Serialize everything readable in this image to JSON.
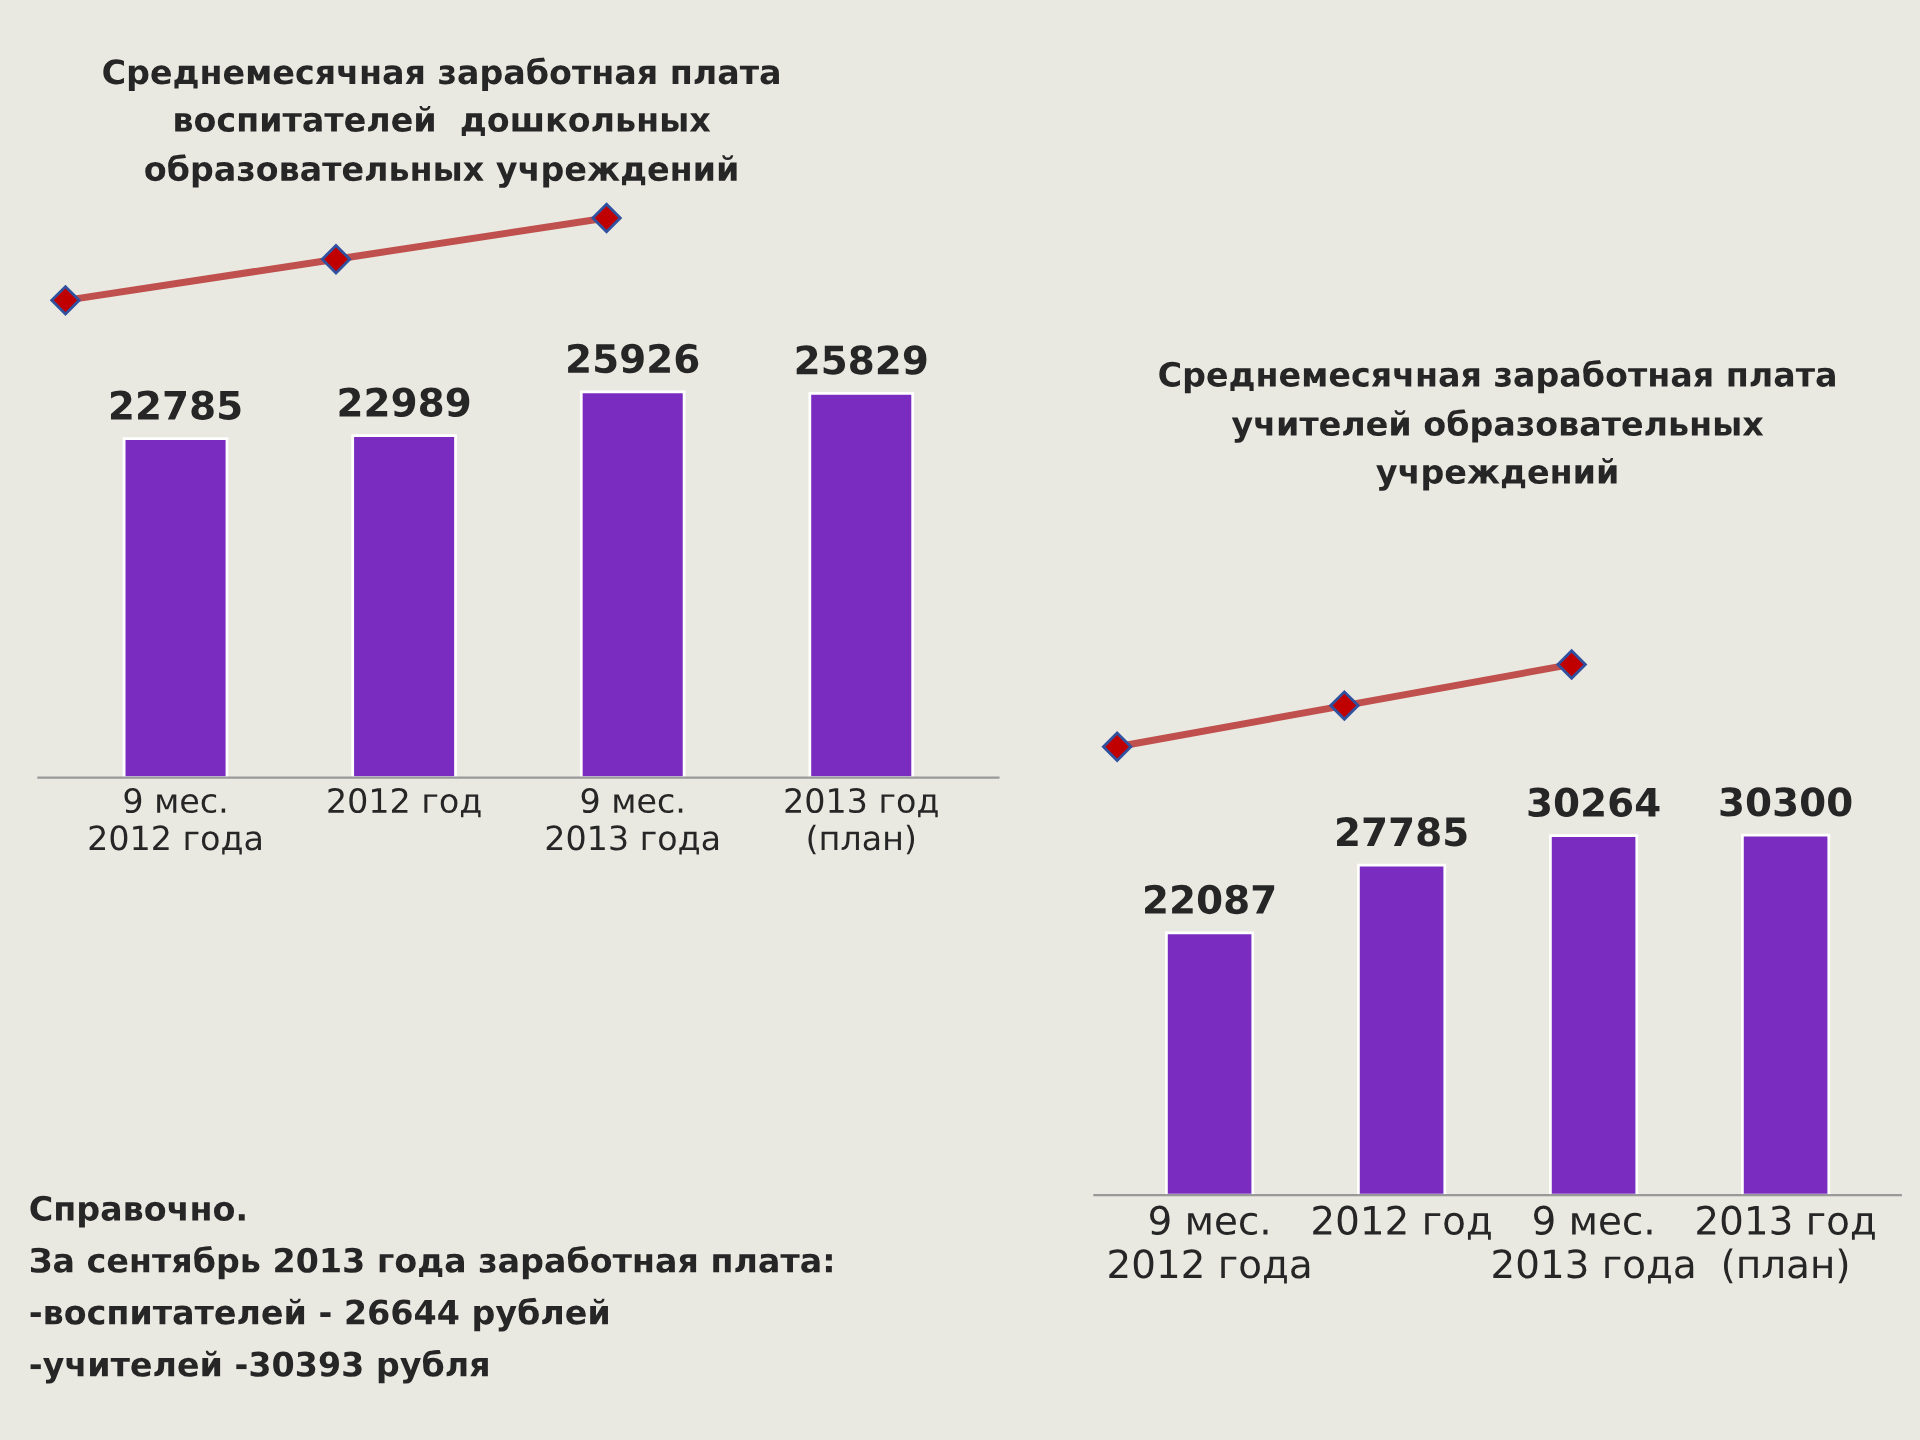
{
  "chart_data": [
    {
      "type": "bar",
      "title": "Среднемесячная заработная плата\nвоспитателей  дошкольных\nобразовательных учреждений",
      "categories": [
        "9 мес.\n2012 года",
        "2012 год",
        "9 мес.\n2013 года",
        "2013 год\n(план)"
      ],
      "values": [
        22785,
        22989,
        25926,
        25829
      ],
      "color": "#7a2cc0",
      "data_labels": true,
      "annotations": [
        "Справочно.\nЗа сентябрь 2013 года заработная плата:\n-воспитателей - 26644 рублей\n-учителей -30393 рубля"
      ]
    },
    {
      "type": "bar",
      "title": "Среднемесячная заработная плата\nучителей образовательных\nучреждений",
      "categories": [
        "9 мес.\n2012 года",
        "2012 год",
        "9 мес.\n2013 года",
        "2013 год\n(план)"
      ],
      "values": [
        22087,
        27785,
        30264,
        30300
      ],
      "color": "#7a2cc0",
      "data_labels": true
    }
  ]
}
